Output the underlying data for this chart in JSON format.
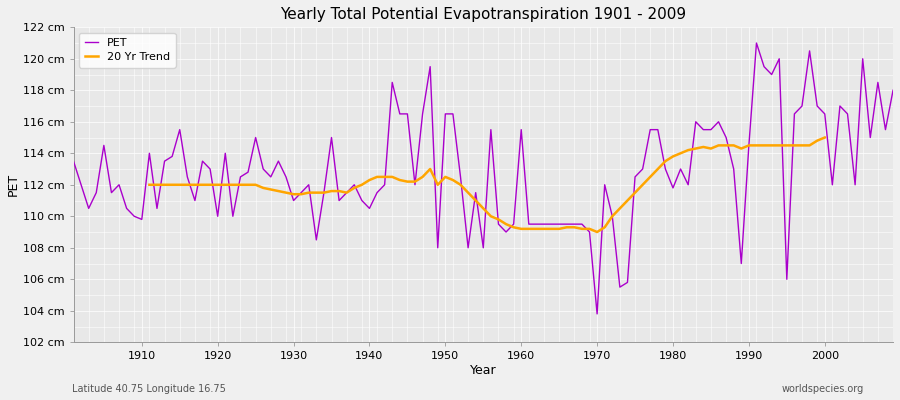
{
  "title": "Yearly Total Potential Evapotranspiration 1901 - 2009",
  "xlabel": "Year",
  "ylabel": "PET",
  "subtitle_left": "Latitude 40.75 Longitude 16.75",
  "subtitle_right": "worldspecies.org",
  "ylim": [
    102,
    122
  ],
  "xlim": [
    1901,
    2009
  ],
  "ytick_labels": [
    "102 cm",
    "104 cm",
    "106 cm",
    "108 cm",
    "110 cm",
    "112 cm",
    "114 cm",
    "116 cm",
    "118 cm",
    "120 cm",
    "122 cm"
  ],
  "ytick_values": [
    102,
    104,
    106,
    108,
    110,
    112,
    114,
    116,
    118,
    120,
    122
  ],
  "pet_color": "#aa00cc",
  "trend_color": "#ffa500",
  "background_color": "#f0f0f0",
  "plot_bg_color": "#e8e8e8",
  "grid_color": "#ffffff",
  "pet_linewidth": 1.0,
  "trend_linewidth": 1.8,
  "legend_labels": [
    "PET",
    "20 Yr Trend"
  ],
  "years": [
    1901,
    1902,
    1903,
    1904,
    1905,
    1906,
    1907,
    1908,
    1909,
    1910,
    1911,
    1912,
    1913,
    1914,
    1915,
    1916,
    1917,
    1918,
    1919,
    1920,
    1921,
    1922,
    1923,
    1924,
    1925,
    1926,
    1927,
    1928,
    1929,
    1930,
    1931,
    1932,
    1933,
    1934,
    1935,
    1936,
    1937,
    1938,
    1939,
    1940,
    1941,
    1942,
    1943,
    1944,
    1945,
    1946,
    1947,
    1948,
    1949,
    1950,
    1951,
    1952,
    1953,
    1954,
    1955,
    1956,
    1957,
    1958,
    1959,
    1960,
    1961,
    1962,
    1963,
    1964,
    1965,
    1966,
    1967,
    1968,
    1969,
    1970,
    1971,
    1972,
    1973,
    1974,
    1975,
    1976,
    1977,
    1978,
    1979,
    1980,
    1981,
    1982,
    1983,
    1984,
    1985,
    1986,
    1987,
    1988,
    1989,
    1990,
    1991,
    1992,
    1993,
    1994,
    1995,
    1996,
    1997,
    1998,
    1999,
    2000,
    2001,
    2002,
    2003,
    2004,
    2005,
    2006,
    2007,
    2008,
    2009
  ],
  "pet_values": [
    113.5,
    112.0,
    110.5,
    111.5,
    114.5,
    111.5,
    112.0,
    110.5,
    110.0,
    109.8,
    114.0,
    110.5,
    113.5,
    113.8,
    115.5,
    112.5,
    111.0,
    113.5,
    113.0,
    110.0,
    114.0,
    110.0,
    112.5,
    112.8,
    115.0,
    113.0,
    112.5,
    113.5,
    112.5,
    111.0,
    111.5,
    112.0,
    108.5,
    111.5,
    115.0,
    111.0,
    111.5,
    112.0,
    111.0,
    110.5,
    111.5,
    112.0,
    118.5,
    116.5,
    116.5,
    112.0,
    116.5,
    119.5,
    108.0,
    116.5,
    116.5,
    112.5,
    108.0,
    111.5,
    108.0,
    115.5,
    109.5,
    109.0,
    109.5,
    115.5,
    109.5,
    109.5,
    109.5,
    109.5,
    109.5,
    109.5,
    109.5,
    109.5,
    109.0,
    103.8,
    112.0,
    110.0,
    105.5,
    105.8,
    112.5,
    113.0,
    115.5,
    115.5,
    113.0,
    111.8,
    113.0,
    112.0,
    116.0,
    115.5,
    115.5,
    116.0,
    115.0,
    113.0,
    107.0,
    114.5,
    121.0,
    119.5,
    119.0,
    120.0,
    106.0,
    116.5,
    117.0,
    120.5,
    117.0,
    116.5,
    112.0,
    117.0,
    116.5,
    112.0,
    120.0,
    115.0,
    118.5,
    115.5,
    118.0
  ],
  "trend_values": [
    null,
    null,
    null,
    null,
    null,
    null,
    null,
    null,
    null,
    null,
    112.0,
    112.0,
    112.0,
    112.0,
    112.0,
    112.0,
    112.0,
    112.0,
    112.0,
    112.0,
    112.0,
    112.0,
    112.0,
    112.0,
    112.0,
    111.8,
    111.7,
    111.6,
    111.5,
    111.4,
    111.4,
    111.5,
    111.5,
    111.5,
    111.6,
    111.6,
    111.5,
    111.8,
    112.0,
    112.3,
    112.5,
    112.5,
    112.5,
    112.3,
    112.2,
    112.2,
    112.5,
    113.0,
    112.0,
    112.5,
    112.3,
    112.0,
    111.5,
    111.0,
    110.5,
    110.0,
    109.8,
    109.5,
    109.3,
    109.2,
    109.2,
    109.2,
    109.2,
    109.2,
    109.2,
    109.3,
    109.3,
    109.2,
    109.2,
    109.0,
    109.3,
    110.0,
    110.5,
    111.0,
    111.5,
    112.0,
    112.5,
    113.0,
    113.5,
    113.8,
    114.0,
    114.2,
    114.3,
    114.4,
    114.3,
    114.5,
    114.5,
    114.5,
    114.3,
    114.5,
    114.5,
    114.5,
    114.5,
    114.5,
    114.5,
    114.5,
    114.5,
    114.5,
    114.8,
    115.0,
    null,
    null,
    null,
    null,
    null,
    null,
    null,
    null,
    null
  ]
}
